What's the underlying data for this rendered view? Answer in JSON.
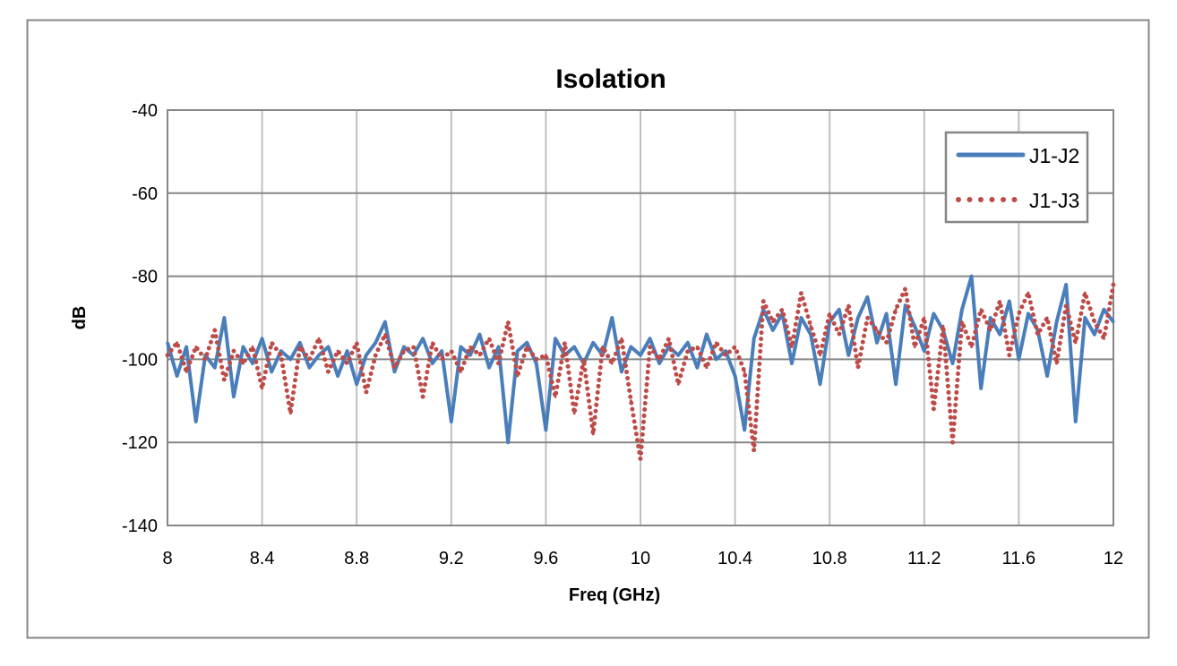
{
  "chart_data": {
    "type": "line",
    "title": "Isolation",
    "xlabel": "Freq (GHz)",
    "ylabel": "dB",
    "xlim": [
      8,
      12
    ],
    "ylim": [
      -140,
      -40
    ],
    "x_ticks": [
      "8",
      "8.4",
      "8.8",
      "9.2",
      "9.6",
      "10",
      "10.4",
      "10.8",
      "11.2",
      "11.6",
      "12"
    ],
    "y_ticks": [
      "-40",
      "-60",
      "-80",
      "-100",
      "-120",
      "-140"
    ],
    "grid": true,
    "legend_position": "top-right",
    "x": [
      8.0,
      8.04,
      8.08,
      8.12,
      8.16,
      8.2,
      8.24,
      8.28,
      8.32,
      8.36,
      8.4,
      8.44,
      8.48,
      8.52,
      8.56,
      8.6,
      8.64,
      8.68,
      8.72,
      8.76,
      8.8,
      8.84,
      8.88,
      8.92,
      8.96,
      9.0,
      9.04,
      9.08,
      9.12,
      9.16,
      9.2,
      9.24,
      9.28,
      9.32,
      9.36,
      9.4,
      9.44,
      9.48,
      9.52,
      9.56,
      9.6,
      9.64,
      9.68,
      9.72,
      9.76,
      9.8,
      9.84,
      9.88,
      9.92,
      9.96,
      10.0,
      10.04,
      10.08,
      10.12,
      10.16,
      10.2,
      10.24,
      10.28,
      10.32,
      10.36,
      10.4,
      10.44,
      10.48,
      10.52,
      10.56,
      10.6,
      10.64,
      10.68,
      10.72,
      10.76,
      10.8,
      10.84,
      10.88,
      10.92,
      10.96,
      11.0,
      11.04,
      11.08,
      11.12,
      11.16,
      11.2,
      11.24,
      11.28,
      11.32,
      11.36,
      11.4,
      11.44,
      11.48,
      11.52,
      11.56,
      11.6,
      11.64,
      11.68,
      11.72,
      11.76,
      11.8,
      11.84,
      11.88,
      11.92,
      11.96,
      12.0
    ],
    "series": [
      {
        "name": "J1-J2",
        "color": "#4a7ebb",
        "style": "solid",
        "values": [
          -96,
          -104,
          -97,
          -115,
          -99,
          -102,
          -90,
          -109,
          -97,
          -101,
          -95,
          -103,
          -98,
          -100,
          -96,
          -102,
          -99,
          -97,
          -104,
          -98,
          -106,
          -99,
          -96,
          -91,
          -103,
          -97,
          -99,
          -95,
          -101,
          -98,
          -115,
          -97,
          -99,
          -94,
          -102,
          -97,
          -120,
          -98,
          -96,
          -101,
          -117,
          -95,
          -99,
          -97,
          -101,
          -96,
          -99,
          -90,
          -103,
          -97,
          -99,
          -95,
          -101,
          -97,
          -99,
          -96,
          -102,
          -94,
          -100,
          -98,
          -104,
          -117,
          -95,
          -88,
          -93,
          -89,
          -101,
          -90,
          -94,
          -106,
          -91,
          -88,
          -99,
          -90,
          -85,
          -96,
          -89,
          -106,
          -87,
          -92,
          -98,
          -89,
          -93,
          -101,
          -88,
          -80,
          -107,
          -90,
          -94,
          -86,
          -100,
          -89,
          -93,
          -104,
          -91,
          -82,
          -115,
          -90,
          -94,
          -88,
          -91
        ]
      },
      {
        "name": "J1-J3",
        "color": "#be4b48",
        "style": "dotted",
        "values": [
          -99,
          -96,
          -103,
          -97,
          -100,
          -93,
          -105,
          -98,
          -101,
          -97,
          -107,
          -96,
          -99,
          -113,
          -97,
          -100,
          -95,
          -103,
          -98,
          -101,
          -96,
          -108,
          -99,
          -94,
          -102,
          -98,
          -97,
          -109,
          -96,
          -100,
          -98,
          -103,
          -97,
          -99,
          -95,
          -101,
          -91,
          -104,
          -97,
          -100,
          -99,
          -109,
          -96,
          -113,
          -100,
          -118,
          -97,
          -101,
          -95,
          -110,
          -124,
          -97,
          -100,
          -95,
          -106,
          -98,
          -97,
          -102,
          -96,
          -99,
          -97,
          -103,
          -122,
          -86,
          -91,
          -88,
          -97,
          -84,
          -92,
          -99,
          -89,
          -94,
          -87,
          -102,
          -90,
          -93,
          -96,
          -88,
          -83,
          -97,
          -90,
          -112,
          -92,
          -120,
          -91,
          -97,
          -88,
          -93,
          -86,
          -99,
          -89,
          -84,
          -94,
          -90,
          -101,
          -87,
          -96,
          -84,
          -91,
          -95,
          -82
        ]
      }
    ]
  }
}
